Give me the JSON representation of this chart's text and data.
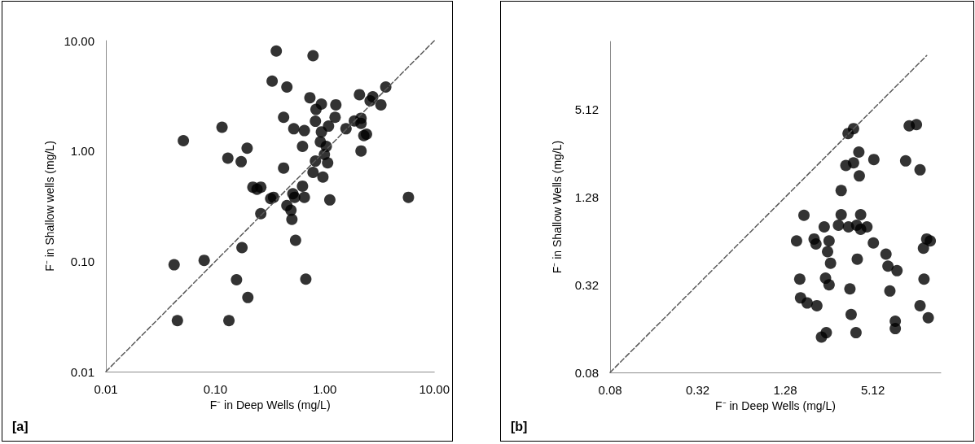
{
  "chart_data": [
    {
      "type": "scatter",
      "xlabel": "F⁻ in Deep Wells (mg/L)",
      "ylabel": "F⁻ in Shallow wells (mg/L)",
      "annotations": [
        "[a]"
      ],
      "log": "xy",
      "marker": "circle",
      "xlim": [
        0.01,
        10
      ],
      "ylim": [
        0.01,
        10
      ],
      "xticks": [
        {
          "value": 0.01,
          "label": "0.01"
        },
        {
          "value": 0.1,
          "label": "0.10"
        },
        {
          "value": 1,
          "label": "1.00"
        },
        {
          "value": 10,
          "label": "10.00"
        }
      ],
      "yticks": [
        {
          "value": 0.01,
          "label": "0.01"
        },
        {
          "value": 0.1,
          "label": "0.10"
        },
        {
          "value": 1,
          "label": "1.00"
        },
        {
          "value": 10,
          "label": "10.00"
        }
      ],
      "series": [
        {
          "type": "line",
          "color": "#595959",
          "line_style": "dashed",
          "marker": "none",
          "x": [
            0.01,
            10
          ],
          "values": [
            0.01,
            10
          ]
        },
        {
          "color": "#000000",
          "x": [
            0.36,
            0.78,
            0.33,
            0.45,
            3.6,
            2.07,
            2.74,
            2.59,
            3.25,
            0.73,
            0.93,
            0.83,
            1.26,
            0.42,
            1.24,
            0.82,
            1.08,
            0.52,
            0.65,
            1.56,
            1.86,
            2.14,
            2.14,
            0.115,
            0.051,
            0.93,
            2.27,
            2.4,
            0.91,
            0.625,
            1.03,
            0.195,
            2.14,
            0.13,
            0.172,
            0.99,
            0.82,
            1.06,
            0.42,
            0.78,
            0.96,
            0.22,
            0.26,
            0.24,
            0.625,
            0.32,
            0.34,
            0.51,
            0.65,
            1.11,
            5.8,
            0.53,
            0.45,
            0.49,
            0.5,
            0.26,
            0.54,
            0.175,
            0.079,
            0.042,
            0.156,
            0.67,
            0.198,
            0.045,
            0.133
          ],
          "values": [
            8.05,
            7.3,
            4.3,
            3.8,
            3.8,
            3.24,
            3.1,
            2.85,
            2.62,
            3.04,
            2.66,
            2.38,
            2.62,
            2.02,
            2.02,
            1.86,
            1.68,
            1.59,
            1.53,
            1.59,
            1.87,
            1.98,
            1.78,
            1.64,
            1.24,
            1.49,
            1.38,
            1.42,
            1.21,
            1.1,
            1.1,
            1.06,
            1.0,
            0.86,
            0.8,
            0.93,
            0.81,
            0.78,
            0.7,
            0.64,
            0.58,
            0.47,
            0.47,
            0.45,
            0.48,
            0.37,
            0.38,
            0.41,
            0.38,
            0.36,
            0.38,
            0.38,
            0.32,
            0.29,
            0.24,
            0.27,
            0.155,
            0.133,
            0.102,
            0.093,
            0.068,
            0.069,
            0.047,
            0.029,
            0.029
          ]
        }
      ]
    },
    {
      "type": "scatter",
      "xlabel": "F⁻ in Deep Wells (mg/L)",
      "ylabel": "F⁻ in Shallow Wells (mg/L)",
      "annotations": [
        "[b]"
      ],
      "log": "xy",
      "marker": "circle",
      "xlim": [
        0.08,
        15
      ],
      "ylim": [
        0.08,
        15
      ],
      "xticks": [
        0.08,
        0.32,
        1.28,
        5.12
      ],
      "yticks": [
        0.08,
        0.32,
        1.28,
        5.12
      ],
      "series": [
        {
          "type": "line",
          "color": "#595959",
          "line_style": "dashed",
          "marker": "none",
          "x": [
            0.08,
            12
          ],
          "values": [
            0.08,
            12
          ]
        },
        {
          "color": "#000000",
          "x": [
            3.46,
            3.77,
            9.1,
            10.2,
            4.1,
            5.2,
            8.6,
            3.34,
            3.77,
            10.8,
            4.13,
            3.1,
            1.72,
            3.1,
            4.22,
            2.37,
            2.97,
            3.48,
            3.96,
            4.22,
            4.66,
            1.53,
            2.02,
            2.08,
            2.56,
            5.16,
            12.0,
            12.7,
            11.4,
            2.5,
            2.62,
            4.0,
            6.3,
            6.5,
            7.5,
            1.61,
            2.42,
            2.56,
            3.56,
            6.7,
            11.5,
            1.63,
            1.81,
            2.11,
            10.8,
            3.63,
            12.3,
            7.3,
            7.3,
            3.92,
            2.45,
            2.27
          ],
          "values": [
            3.5,
            3.78,
            3.95,
            4.03,
            2.61,
            2.32,
            2.27,
            2.11,
            2.2,
            1.97,
            1.79,
            1.42,
            0.96,
            0.97,
            0.97,
            0.8,
            0.82,
            0.8,
            0.82,
            0.77,
            0.8,
            0.64,
            0.66,
            0.61,
            0.64,
            0.62,
            0.66,
            0.64,
            0.57,
            0.54,
            0.45,
            0.48,
            0.52,
            0.43,
            0.4,
            0.35,
            0.355,
            0.32,
            0.3,
            0.29,
            0.35,
            0.26,
            0.24,
            0.23,
            0.23,
            0.2,
            0.19,
            0.18,
            0.16,
            0.15,
            0.15,
            0.14
          ]
        }
      ]
    }
  ]
}
